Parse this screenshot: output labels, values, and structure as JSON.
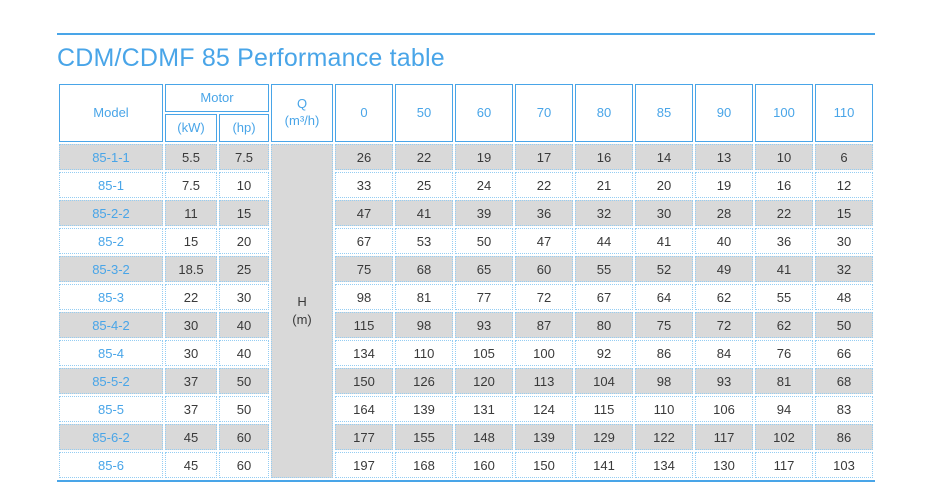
{
  "colors": {
    "accent": "#49a5e8",
    "dotted_border": "#94cdf3",
    "alt_row_bg": "#d9d9d9",
    "body_text": "#3a3a3a"
  },
  "page": {
    "title": "CDM/CDMF 85 Performance table"
  },
  "table": {
    "headers": {
      "model": "Model",
      "motor": "Motor",
      "motor_kw": "(kW)",
      "motor_hp": "(hp)",
      "q_label": "Q",
      "q_unit": "(m³/h)",
      "flow_values": [
        "0",
        "50",
        "60",
        "70",
        "80",
        "85",
        "90",
        "100",
        "110"
      ],
      "h_label": "H",
      "h_unit": "(m)"
    },
    "rows": [
      {
        "model": "85-1-1",
        "kw": "5.5",
        "hp": "7.5",
        "values": [
          26,
          22,
          19,
          17,
          16,
          14,
          13,
          10,
          6
        ]
      },
      {
        "model": "85-1",
        "kw": "7.5",
        "hp": "10",
        "values": [
          33,
          25,
          24,
          22,
          21,
          20,
          19,
          16,
          12
        ]
      },
      {
        "model": "85-2-2",
        "kw": "11",
        "hp": "15",
        "values": [
          47,
          41,
          39,
          36,
          32,
          30,
          28,
          22,
          15
        ]
      },
      {
        "model": "85-2",
        "kw": "15",
        "hp": "20",
        "values": [
          67,
          53,
          50,
          47,
          44,
          41,
          40,
          36,
          30
        ]
      },
      {
        "model": "85-3-2",
        "kw": "18.5",
        "hp": "25",
        "values": [
          75,
          68,
          65,
          60,
          55,
          52,
          49,
          41,
          32
        ]
      },
      {
        "model": "85-3",
        "kw": "22",
        "hp": "30",
        "values": [
          98,
          81,
          77,
          72,
          67,
          64,
          62,
          55,
          48
        ]
      },
      {
        "model": "85-4-2",
        "kw": "30",
        "hp": "40",
        "values": [
          115,
          98,
          93,
          87,
          80,
          75,
          72,
          62,
          50
        ]
      },
      {
        "model": "85-4",
        "kw": "30",
        "hp": "40",
        "values": [
          134,
          110,
          105,
          100,
          92,
          86,
          84,
          76,
          66
        ]
      },
      {
        "model": "85-5-2",
        "kw": "37",
        "hp": "50",
        "values": [
          150,
          126,
          120,
          113,
          104,
          98,
          93,
          81,
          68
        ]
      },
      {
        "model": "85-5",
        "kw": "37",
        "hp": "50",
        "values": [
          164,
          139,
          131,
          124,
          115,
          110,
          106,
          94,
          83
        ]
      },
      {
        "model": "85-6-2",
        "kw": "45",
        "hp": "60",
        "values": [
          177,
          155,
          148,
          139,
          129,
          122,
          117,
          102,
          86
        ]
      },
      {
        "model": "85-6",
        "kw": "45",
        "hp": "60",
        "values": [
          197,
          168,
          160,
          150,
          141,
          134,
          130,
          117,
          103
        ]
      }
    ]
  }
}
